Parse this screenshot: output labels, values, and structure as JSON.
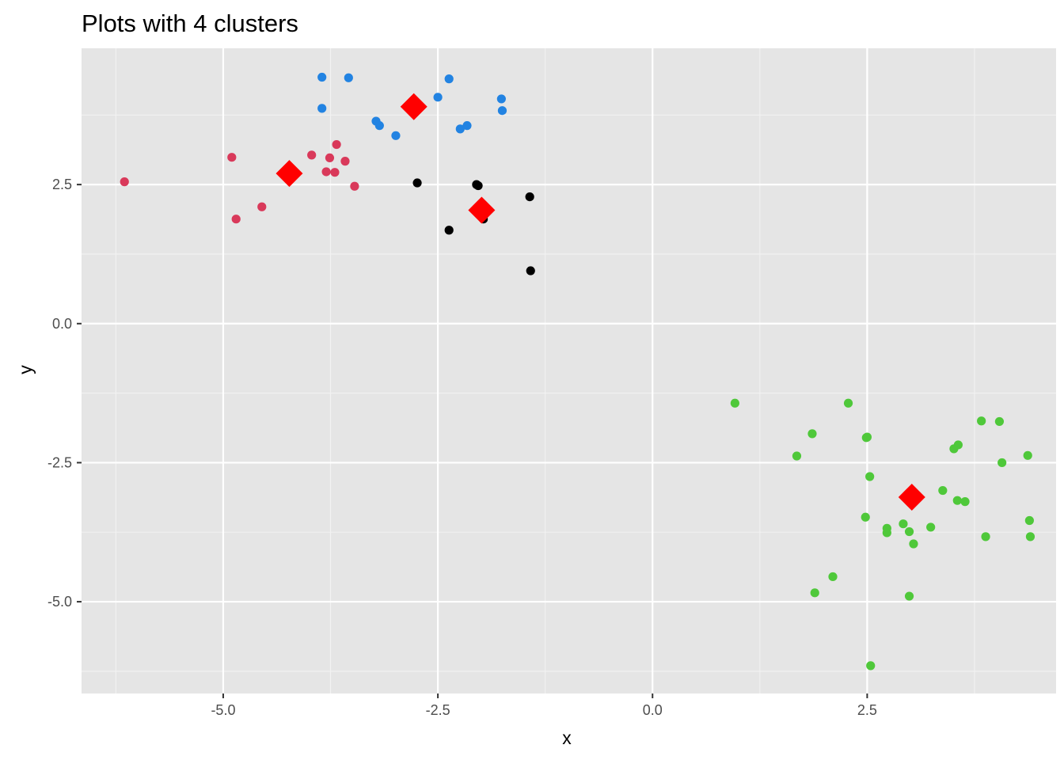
{
  "chart_data": {
    "type": "scatter",
    "title": "Plots with 4 clusters",
    "xlabel": "x",
    "ylabel": "y",
    "xlim": [
      -6.65,
      4.7
    ],
    "ylim": [
      -6.65,
      4.95
    ],
    "x_ticks": [
      -5.0,
      -2.5,
      0.0,
      2.5
    ],
    "x_tick_labels": [
      "-5.0",
      "-2.5",
      "0.0",
      "2.5"
    ],
    "y_ticks": [
      2.5,
      0.0,
      -2.5,
      -5.0
    ],
    "y_tick_labels": [
      "2.5",
      "0.0",
      "-2.5",
      "-5.0"
    ],
    "grid": true,
    "legend": "none",
    "colors": {
      "panel_background": "#e5e5e5",
      "grid_major": "#ffffff",
      "grid_minor": "#f2f2f2",
      "centroid": "#ff0000"
    },
    "series": [
      {
        "color": "#2283e2",
        "marker": "circle",
        "points": [
          [
            -3.85,
            4.43
          ],
          [
            -3.54,
            4.42
          ],
          [
            -2.37,
            4.4
          ],
          [
            -2.5,
            4.07
          ],
          [
            -1.76,
            4.04
          ],
          [
            -3.85,
            3.87
          ],
          [
            -1.75,
            3.83
          ],
          [
            -3.22,
            3.64
          ],
          [
            -3.18,
            3.56
          ],
          [
            -2.16,
            3.56
          ],
          [
            -2.24,
            3.5
          ],
          [
            -2.99,
            3.38
          ]
        ]
      },
      {
        "color": "#d9395a",
        "marker": "circle",
        "points": [
          [
            -6.15,
            2.55
          ],
          [
            -4.9,
            2.99
          ],
          [
            -4.85,
            1.88
          ],
          [
            -4.55,
            2.1
          ],
          [
            -3.97,
            3.03
          ],
          [
            -3.68,
            3.22
          ],
          [
            -3.76,
            2.98
          ],
          [
            -3.58,
            2.92
          ],
          [
            -3.8,
            2.73
          ],
          [
            -3.7,
            2.72
          ],
          [
            -3.47,
            2.47
          ]
        ]
      },
      {
        "color": "#000000",
        "marker": "circle",
        "points": [
          [
            -2.74,
            2.53
          ],
          [
            -2.05,
            2.5
          ],
          [
            -2.03,
            2.48
          ],
          [
            -1.43,
            2.28
          ],
          [
            -1.97,
            1.88
          ],
          [
            -2.37,
            1.68
          ],
          [
            -1.42,
            0.95
          ]
        ]
      },
      {
        "color": "#4fc83a",
        "marker": "circle",
        "points": [
          [
            0.96,
            -1.43
          ],
          [
            2.28,
            -1.43
          ],
          [
            1.86,
            -1.98
          ],
          [
            2.49,
            -2.05
          ],
          [
            2.5,
            -2.04
          ],
          [
            1.68,
            -2.38
          ],
          [
            3.83,
            -1.75
          ],
          [
            4.04,
            -1.76
          ],
          [
            3.56,
            -2.18
          ],
          [
            3.51,
            -2.25
          ],
          [
            4.37,
            -2.37
          ],
          [
            4.07,
            -2.5
          ],
          [
            2.53,
            -2.75
          ],
          [
            3.38,
            -3.0
          ],
          [
            3.55,
            -3.18
          ],
          [
            3.64,
            -3.2
          ],
          [
            2.48,
            -3.48
          ],
          [
            4.39,
            -3.54
          ],
          [
            2.92,
            -3.6
          ],
          [
            3.24,
            -3.66
          ],
          [
            2.73,
            -3.68
          ],
          [
            2.73,
            -3.76
          ],
          [
            2.99,
            -3.74
          ],
          [
            3.04,
            -3.96
          ],
          [
            3.88,
            -3.83
          ],
          [
            4.4,
            -3.83
          ],
          [
            2.1,
            -4.55
          ],
          [
            1.89,
            -4.84
          ],
          [
            2.99,
            -4.9
          ],
          [
            2.54,
            -6.15
          ]
        ]
      },
      {
        "color": "#ff0000",
        "marker": "diamond",
        "points": [
          [
            -2.78,
            3.9
          ],
          [
            -4.23,
            2.7
          ],
          [
            -1.99,
            2.04
          ],
          [
            3.02,
            -3.12
          ]
        ]
      }
    ]
  }
}
